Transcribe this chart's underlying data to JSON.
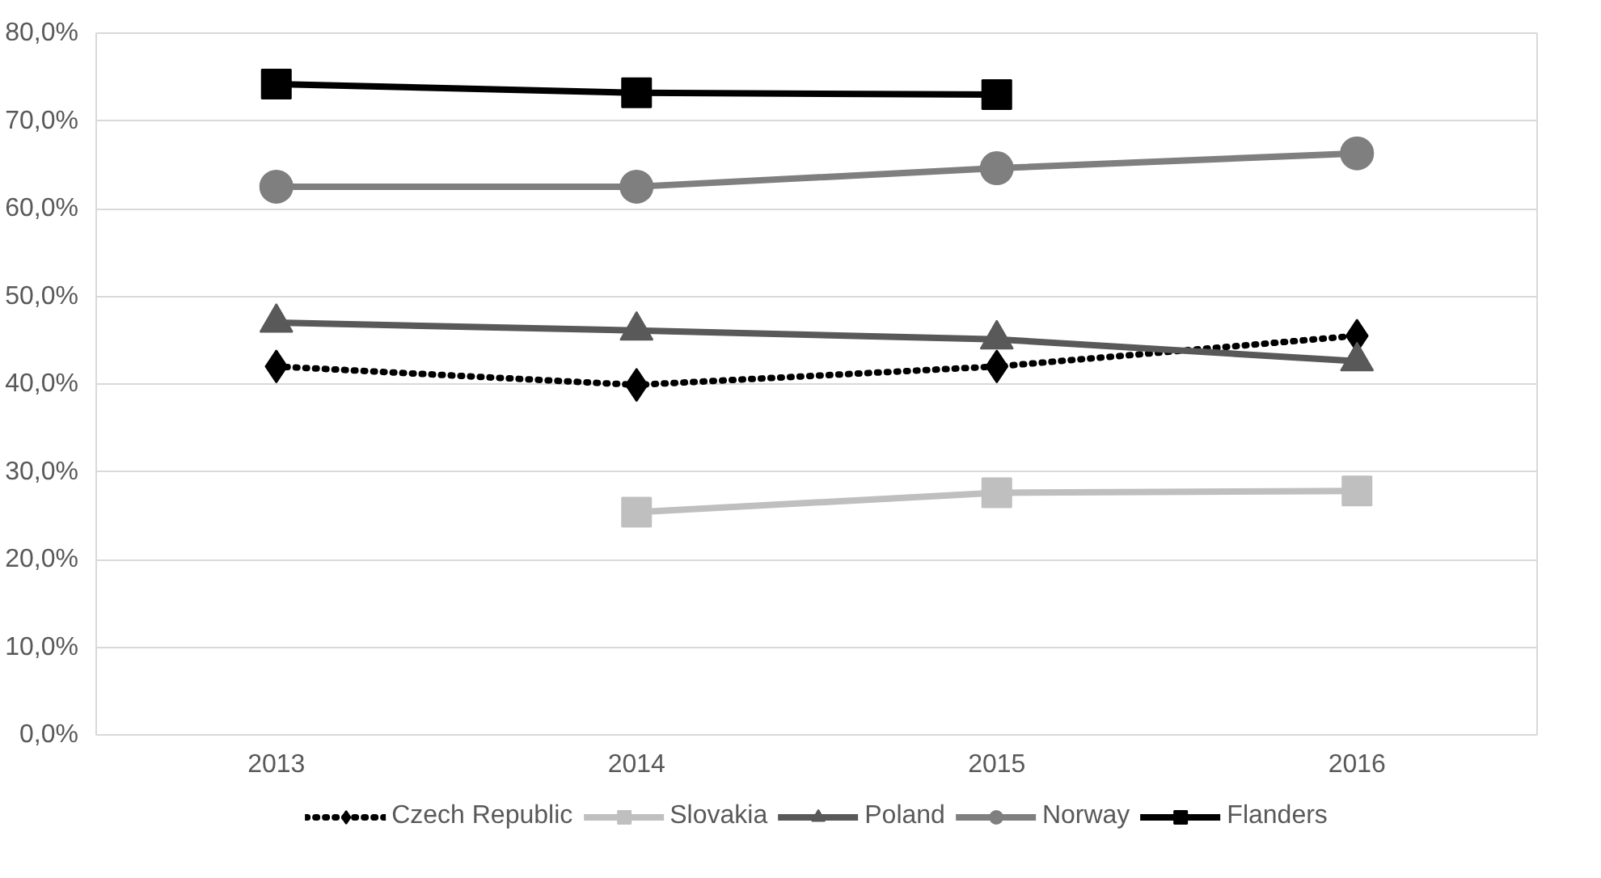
{
  "chart_data": {
    "type": "line",
    "categories": [
      "2013",
      "2014",
      "2015",
      "2016"
    ],
    "series": [
      {
        "name": "Czech Republic",
        "color": "#000000",
        "marker": "diamond",
        "line_style": "dotted",
        "values": [
          42.0,
          39.9,
          42.0,
          45.5
        ]
      },
      {
        "name": "Slovakia",
        "color": "#bfbfbf",
        "marker": "square",
        "line_style": "solid",
        "values": [
          null,
          25.4,
          27.6,
          27.8
        ]
      },
      {
        "name": "Poland",
        "color": "#595959",
        "marker": "triangle",
        "line_style": "solid",
        "values": [
          47.0,
          46.1,
          45.1,
          42.6
        ]
      },
      {
        "name": "Norway",
        "color": "#7f7f7f",
        "marker": "circle",
        "line_style": "solid",
        "values": [
          62.5,
          62.5,
          64.6,
          66.3
        ]
      },
      {
        "name": "Flanders",
        "color": "#000000",
        "marker": "square",
        "line_style": "solid",
        "values": [
          74.2,
          73.2,
          73.0,
          null
        ]
      }
    ],
    "ylim": [
      0,
      80
    ],
    "yticks": [
      {
        "value": 0,
        "label": "0,0%"
      },
      {
        "value": 10,
        "label": "10,0%"
      },
      {
        "value": 20,
        "label": "20,0%"
      },
      {
        "value": 30,
        "label": "30,0%"
      },
      {
        "value": 40,
        "label": "40,0%"
      },
      {
        "value": 50,
        "label": "50,0%"
      },
      {
        "value": 60,
        "label": "60,0%"
      },
      {
        "value": 70,
        "label": "70,0%"
      },
      {
        "value": 80,
        "label": "80,0%"
      }
    ],
    "grid": "y",
    "legend": "bottom"
  }
}
